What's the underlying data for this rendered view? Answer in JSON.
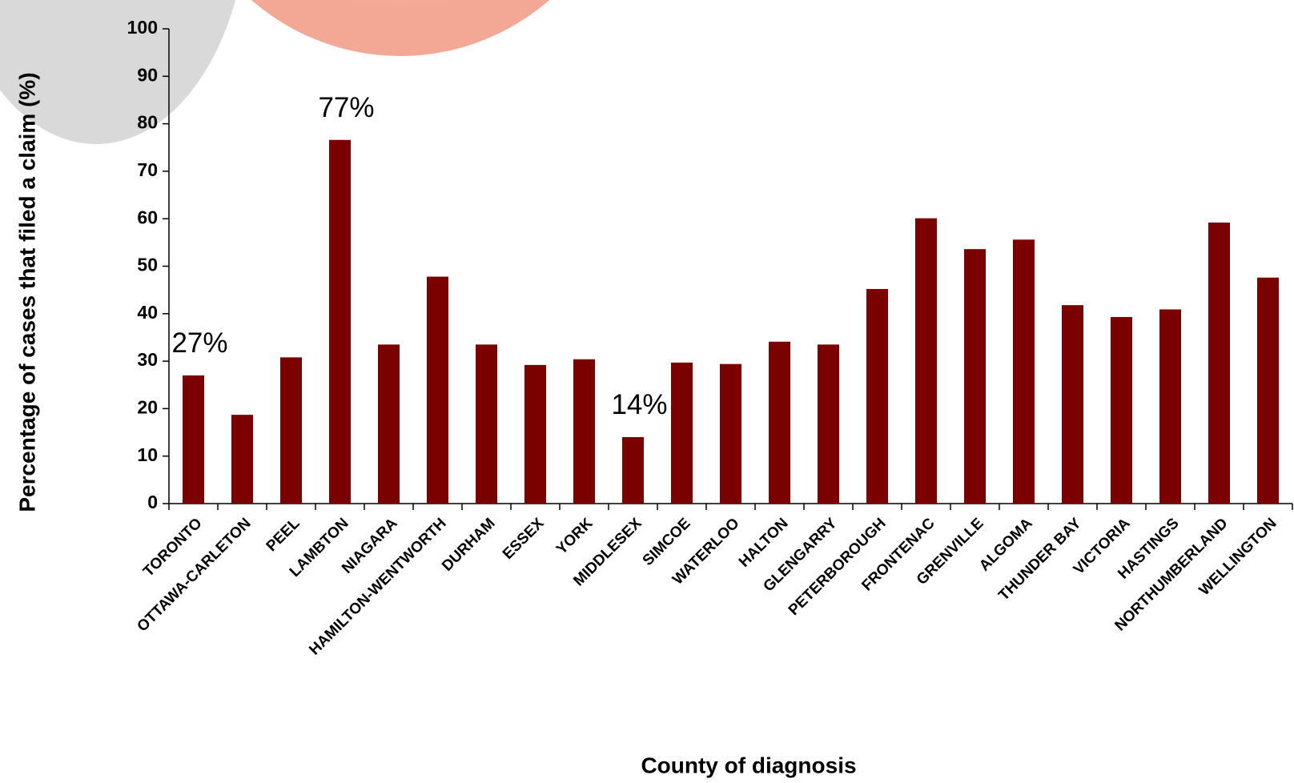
{
  "chart_data": {
    "type": "bar",
    "x_label": "County of diagnosis",
    "y_label": "Percentage of cases that filed a claim (%)",
    "categories": [
      "TORONTO",
      "OTTAWA-CARLETON",
      "PEEL",
      "LAMBTON",
      "NIAGARA",
      "HAMILTON-WENTWORTH",
      "DURHAM",
      "ESSEX",
      "YORK",
      "MIDDLESEX",
      "SIMCOE",
      "WATERLOO",
      "HALTON",
      "GLENGARRY",
      "PETERBOROUGH",
      "FRONTENAC",
      "GRENVILLE",
      "ALGOMA",
      "THUNDER BAY",
      "VICTORIA",
      "HASTINGS",
      "NORTHUMBERLAND",
      "WELLINGTON"
    ],
    "values": [
      27,
      18.7,
      30.8,
      76.6,
      33.5,
      47.8,
      33.5,
      29.2,
      30.4,
      14,
      29.7,
      29.4,
      34.1,
      33.5,
      45.2,
      60.1,
      53.6,
      55.6,
      41.8,
      39.3,
      40.9,
      59.2,
      47.6
    ],
    "value_labels": [
      "27%",
      null,
      null,
      "77%",
      null,
      null,
      null,
      null,
      null,
      "14%",
      null,
      null,
      null,
      null,
      null,
      null,
      null,
      null,
      null,
      null,
      null,
      null,
      null
    ],
    "color": "#7b0000",
    "ylim": [
      0,
      100
    ],
    "yticks": [
      0,
      10,
      20,
      30,
      40,
      50,
      60,
      70,
      80,
      90,
      100
    ],
    "grid": false
  }
}
